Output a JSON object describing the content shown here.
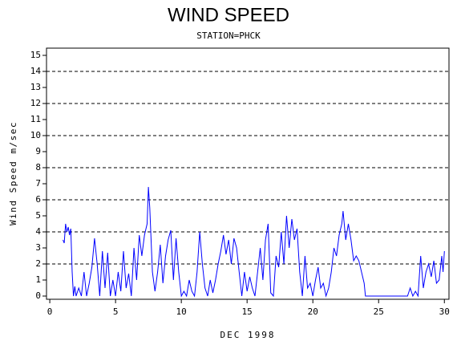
{
  "chart_data": {
    "type": "line",
    "title": "WIND SPEED",
    "subtitle": "STATION=PHCK",
    "x_label": "DEC 1998",
    "y_label": "Wind Speed m/sec",
    "xlim": [
      -0.25,
      30.35
    ],
    "xticks": [
      0,
      5,
      10,
      15,
      20,
      25,
      30
    ],
    "ylim": [
      -0.2,
      15.45
    ],
    "yticks": [
      0,
      1,
      2,
      3,
      4,
      5,
      6,
      7,
      8,
      9,
      10,
      11,
      12,
      13,
      14,
      15
    ],
    "grid": true,
    "x": [
      1.0,
      1.1,
      1.2,
      1.3,
      1.4,
      1.5,
      1.6,
      1.7,
      1.8,
      1.9,
      2.0,
      2.2,
      2.4,
      2.6,
      2.8,
      3.0,
      3.2,
      3.4,
      3.6,
      3.8,
      4.0,
      4.2,
      4.4,
      4.6,
      4.8,
      5.0,
      5.2,
      5.4,
      5.6,
      5.8,
      6.0,
      6.2,
      6.4,
      6.6,
      6.8,
      7.0,
      7.2,
      7.4,
      7.5,
      7.6,
      7.8,
      8.0,
      8.2,
      8.4,
      8.6,
      8.8,
      9.0,
      9.2,
      9.4,
      9.6,
      9.8,
      10.0,
      10.2,
      10.4,
      10.6,
      10.8,
      11.0,
      11.2,
      11.4,
      11.6,
      11.8,
      12.0,
      12.2,
      12.4,
      12.6,
      12.8,
      13.0,
      13.2,
      13.4,
      13.6,
      13.8,
      14.0,
      14.2,
      14.4,
      14.6,
      14.8,
      15.0,
      15.2,
      15.4,
      15.6,
      15.8,
      16.0,
      16.2,
      16.4,
      16.6,
      16.8,
      17.0,
      17.2,
      17.4,
      17.6,
      17.8,
      18.0,
      18.2,
      18.4,
      18.6,
      18.8,
      19.0,
      19.2,
      19.4,
      19.6,
      19.8,
      20.0,
      20.2,
      20.4,
      20.6,
      20.8,
      21.0,
      21.2,
      21.4,
      21.6,
      21.8,
      22.0,
      22.2,
      22.3,
      22.5,
      22.7,
      22.9,
      23.1,
      23.3,
      23.5,
      23.7,
      23.9,
      24.0,
      25.0,
      26.0,
      27.2,
      27.4,
      27.6,
      27.8,
      28.0,
      28.2,
      28.4,
      28.6,
      28.8,
      29.0,
      29.2,
      29.4,
      29.6,
      29.8,
      29.9,
      30.0
    ],
    "series": [
      {
        "name": "Wind Speed",
        "color": "#0000ff",
        "values": [
          3.5,
          3.3,
          4.5,
          4.0,
          4.3,
          3.8,
          4.2,
          1.5,
          0,
          0.6,
          0,
          0.5,
          0,
          1.5,
          0,
          0.8,
          1.8,
          3.6,
          2.0,
          0,
          2.8,
          0.5,
          2.7,
          0,
          1.0,
          0,
          1.5,
          0.3,
          2.8,
          0.5,
          1.4,
          0,
          3.0,
          1.0,
          3.8,
          2.5,
          3.8,
          4.5,
          6.8,
          5.5,
          1.5,
          0.3,
          1.5,
          3.2,
          0.8,
          2.5,
          3.5,
          4.1,
          1.0,
          3.6,
          1.5,
          0,
          0.3,
          0,
          1.0,
          0.3,
          0,
          1.5,
          4.0,
          2.0,
          0.5,
          0,
          1.0,
          0.2,
          1.0,
          2.0,
          2.8,
          3.8,
          2.6,
          3.5,
          2.0,
          3.6,
          3.0,
          1.5,
          0,
          1.5,
          0.3,
          1.2,
          0.5,
          0,
          1.5,
          3.0,
          1.0,
          3.5,
          4.5,
          0.2,
          0,
          2.5,
          1.8,
          4.0,
          2.0,
          5.0,
          3.0,
          4.8,
          3.5,
          4.2,
          1.5,
          0,
          2.5,
          0.5,
          0.8,
          0,
          1.0,
          1.8,
          0.5,
          0.8,
          0,
          0.5,
          1.5,
          3.0,
          2.5,
          3.8,
          4.5,
          5.3,
          3.5,
          4.5,
          3.5,
          2.2,
          2.5,
          2.2,
          1.5,
          0.8,
          0,
          0,
          0,
          0,
          0.5,
          0,
          0.3,
          0,
          2.5,
          0.5,
          1.5,
          2.0,
          1.2,
          2.2,
          0.8,
          1.0,
          2.5,
          1.5,
          2.8
        ]
      }
    ]
  }
}
